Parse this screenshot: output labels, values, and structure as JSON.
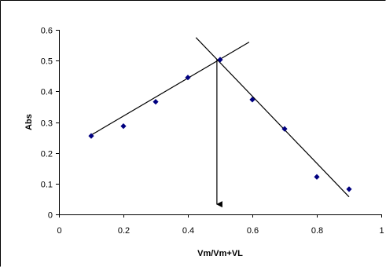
{
  "chart_data": {
    "type": "scatter",
    "title": "",
    "xlabel": "Vm/Vm+VL",
    "ylabel": "Abs",
    "xlim": [
      0,
      1
    ],
    "ylim": [
      0,
      0.6
    ],
    "x_ticks": [
      0,
      0.2,
      0.4,
      0.6,
      0.8,
      1
    ],
    "x_tick_labels": [
      "0",
      "0.2",
      "0.4",
      "0.6",
      "0.8",
      "1"
    ],
    "y_ticks": [
      0,
      0.1,
      0.2,
      0.3,
      0.4,
      0.5,
      0.6
    ],
    "y_tick_labels": [
      "0",
      "0.1",
      "0.2",
      "0.3",
      "0.4",
      "0.5",
      "0.6"
    ],
    "grid": false,
    "legend": "none",
    "marker": "diamond",
    "marker_color": "#000080",
    "series": [
      {
        "x": [
          0.1,
          0.2,
          0.3,
          0.4,
          0.5,
          0.6,
          0.7,
          0.8,
          0.9
        ],
        "y": [
          0.255,
          0.287,
          0.366,
          0.445,
          0.503,
          0.373,
          0.278,
          0.122,
          0.082
        ]
      }
    ],
    "trend_lines": [
      {
        "from": [
          0.1,
          0.258
        ],
        "to": [
          0.59,
          0.56
        ],
        "color": "#000000"
      },
      {
        "from": [
          0.425,
          0.575
        ],
        "to": [
          0.9,
          0.057
        ],
        "color": "#000000"
      }
    ],
    "annotations": [
      {
        "type": "arrow",
        "from": [
          0.49,
          0.505
        ],
        "to": [
          0.49,
          0.015
        ],
        "color": "#000000"
      }
    ]
  }
}
